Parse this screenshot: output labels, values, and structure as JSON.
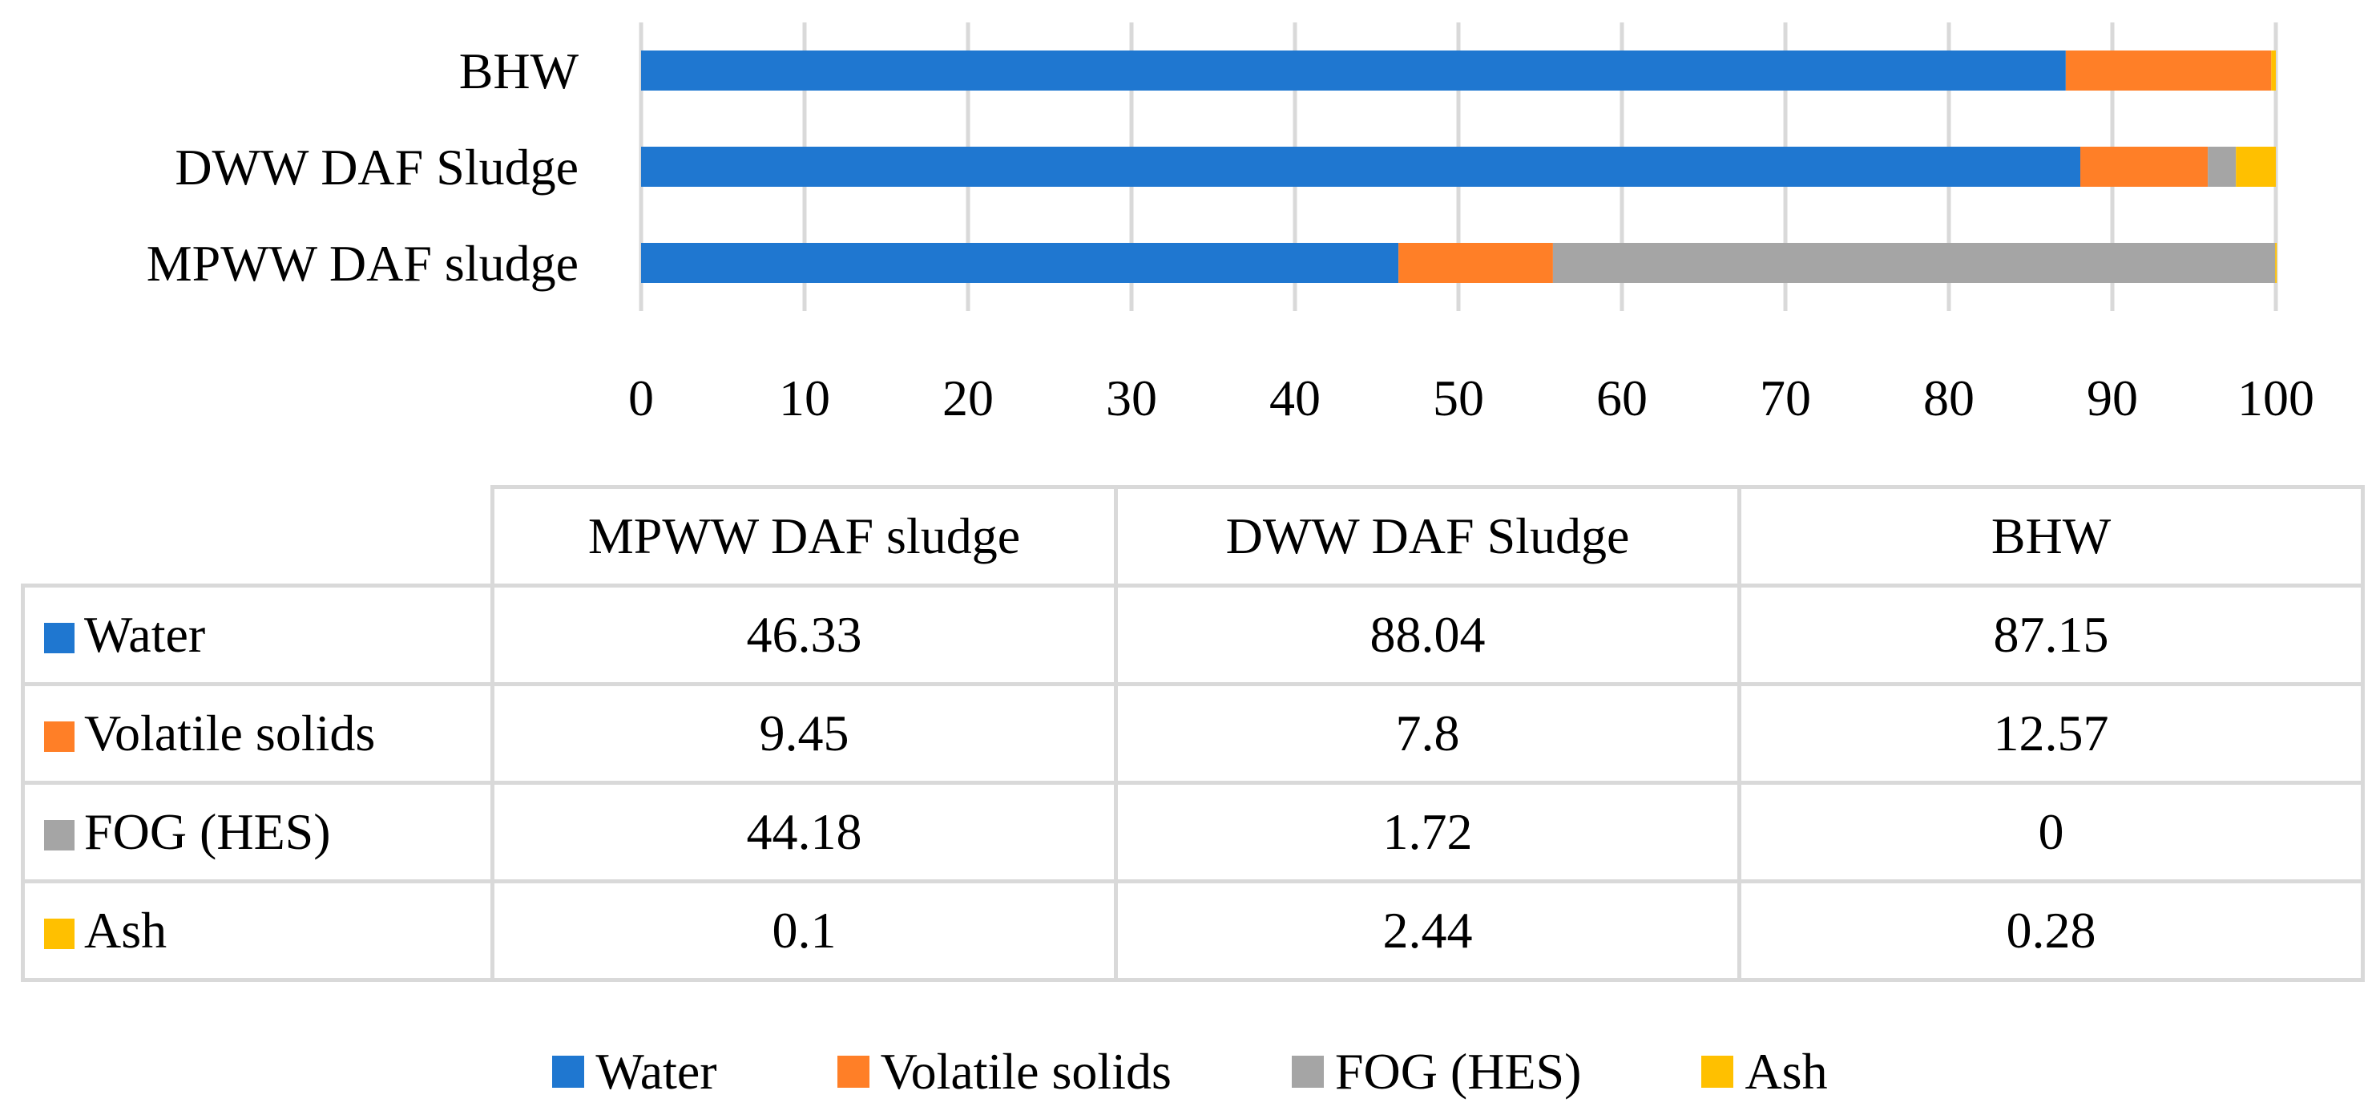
{
  "chart_data": {
    "type": "bar",
    "orientation": "horizontal",
    "stacked": true,
    "title": "",
    "xlabel": "",
    "ylabel": "",
    "xlim": [
      0,
      100
    ],
    "x_ticks": [
      "0",
      "10",
      "20",
      "30",
      "40",
      "50",
      "60",
      "70",
      "80",
      "90",
      "100"
    ],
    "categories": [
      "MPWW DAF sludge",
      "DWW DAF Sludge",
      "BHW"
    ],
    "series": [
      {
        "name": "Water",
        "color": "#1f77d0",
        "values": [
          46.33,
          88.04,
          87.15
        ],
        "labels": [
          "46.33",
          "88.04",
          "87.15"
        ]
      },
      {
        "name": "Volatile solids",
        "color": "#ff7f27",
        "values": [
          9.45,
          7.8,
          12.57
        ],
        "labels": [
          "9.45",
          "7.8",
          "12.57"
        ]
      },
      {
        "name": "FOG (HES)",
        "color": "#a5a5a5",
        "values": [
          44.18,
          1.72,
          0
        ],
        "labels": [
          "44.18",
          "1.72",
          "0"
        ]
      },
      {
        "name": "Ash",
        "color": "#ffc000",
        "values": [
          0.1,
          2.44,
          0.28
        ],
        "labels": [
          "0.1",
          "2.44",
          "0.28"
        ]
      }
    ],
    "grid": true,
    "legend": "bottom",
    "data_table": true
  }
}
